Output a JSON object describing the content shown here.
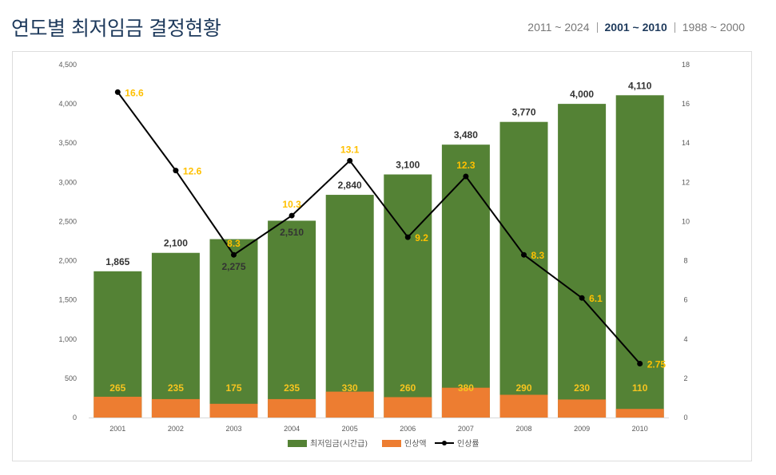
{
  "header": {
    "title": "연도별 최저임금 결정현황",
    "ranges": [
      {
        "label": "2011 ~ 2024",
        "active": false
      },
      {
        "label": "2001 ~ 2010",
        "active": true
      },
      {
        "label": "1988 ~ 2000",
        "active": false
      }
    ]
  },
  "chart_data": {
    "type": "bar",
    "categories": [
      "2001",
      "2002",
      "2003",
      "2004",
      "2005",
      "2006",
      "2007",
      "2008",
      "2009",
      "2010"
    ],
    "series": [
      {
        "name": "최저임금(시간급)",
        "kind": "bar",
        "axis": "left",
        "color": "#548235",
        "values": [
          1865,
          2100,
          2275,
          2510,
          2840,
          3100,
          3480,
          3770,
          4000,
          4110
        ],
        "labels": [
          "1,865",
          "2,100",
          "2,275",
          "2,510",
          "2,840",
          "3,100",
          "3,480",
          "3,770",
          "4,000",
          "4,110"
        ]
      },
      {
        "name": "인상액",
        "kind": "bar",
        "axis": "left",
        "color": "#ed7d31",
        "values": [
          265,
          235,
          175,
          235,
          330,
          260,
          380,
          290,
          230,
          110
        ],
        "labels": [
          "265",
          "235",
          "175",
          "235",
          "330",
          "260",
          "380",
          "290",
          "230",
          "110"
        ]
      },
      {
        "name": "인상률",
        "kind": "line",
        "axis": "right",
        "color": "#000000",
        "values": [
          16.6,
          12.6,
          8.3,
          10.3,
          13.1,
          9.2,
          12.3,
          8.3,
          6.1,
          2.75
        ],
        "labels": [
          "16.6",
          "12.6",
          "8.3",
          "10.3",
          "13.1",
          "9.2",
          "12.3",
          "8.3",
          "6.1",
          "2.75"
        ]
      }
    ],
    "y_left": {
      "lim": [
        0,
        4500
      ],
      "ticks": [
        "0",
        "500",
        "1,000",
        "1,500",
        "2,000",
        "2,500",
        "3,000",
        "3,500",
        "4,000",
        "4,500"
      ]
    },
    "y_right": {
      "lim": [
        0,
        18
      ],
      "ticks": [
        "0",
        "2",
        "4",
        "6",
        "8",
        "10",
        "12",
        "14",
        "16",
        "18"
      ]
    },
    "legend": {
      "position": "bottom"
    },
    "grid": false
  }
}
